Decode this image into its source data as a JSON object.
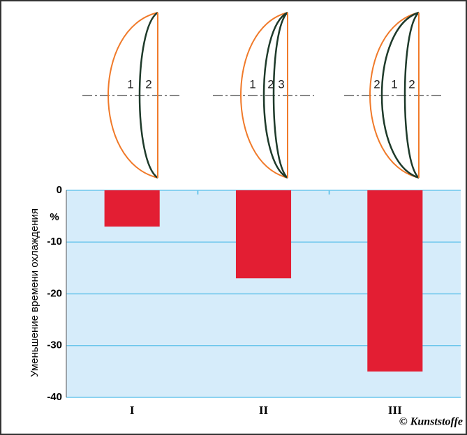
{
  "chart_data": {
    "type": "bar",
    "ylabel": "Уменьшение времени охлаждения",
    "yunit": "%",
    "categories": [
      "I",
      "II",
      "III"
    ],
    "values": [
      -7,
      -17,
      -35
    ],
    "color": "#e31e33",
    "ylim": [
      -40,
      0
    ],
    "yticks": [
      0,
      -10,
      -20,
      -30,
      -40
    ],
    "grid": true,
    "background": "#d6ecfa"
  },
  "diagrams": [
    {
      "labels": [
        "1",
        "2"
      ]
    },
    {
      "labels": [
        "1",
        "2",
        "3"
      ]
    },
    {
      "labels": [
        "2",
        "1",
        "2"
      ]
    }
  ],
  "credit": "© Kunststoffe"
}
